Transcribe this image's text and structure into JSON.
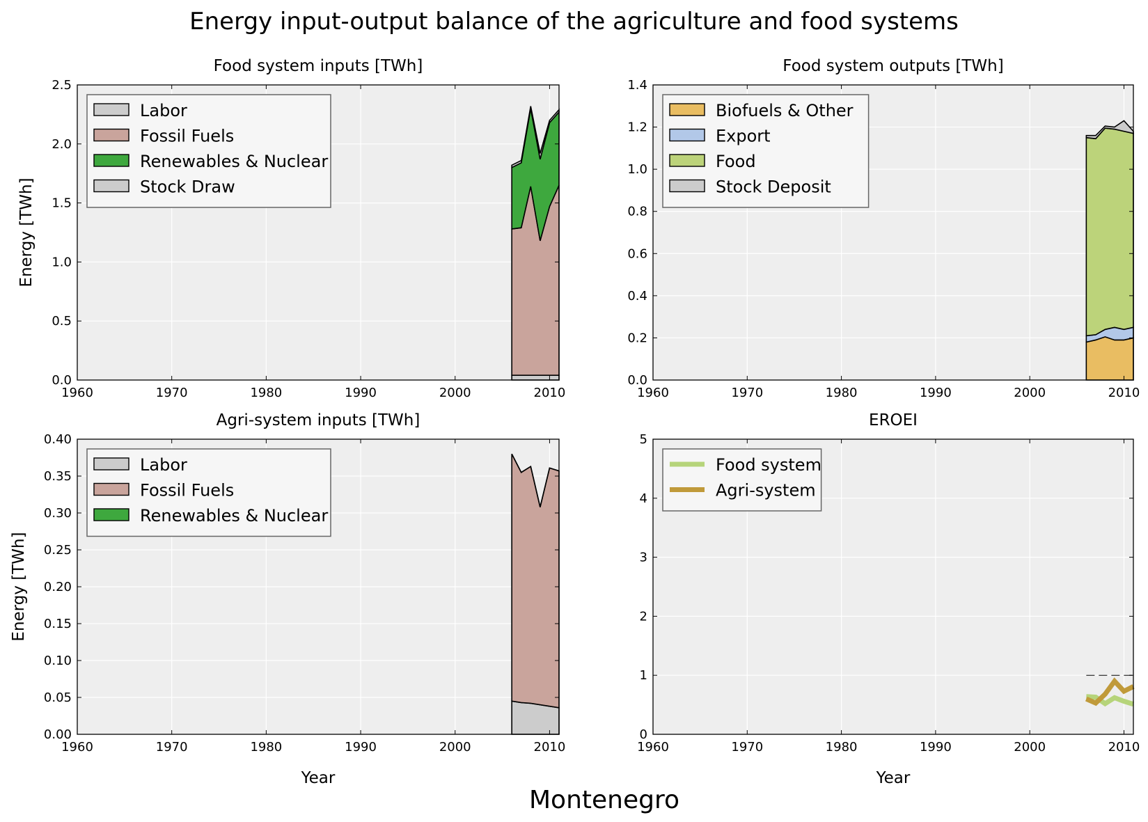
{
  "suptitle": "Energy input-output balance of the agriculture and food systems",
  "footer": "Montenegro",
  "colors": {
    "labor": "#cccccc",
    "fossil": "#c9a49c",
    "renewables": "#3ea83e",
    "stock_draw": "#cccccc",
    "biofuels": "#e9bd62",
    "export": "#b2c8e8",
    "food": "#bcd37a",
    "stock_deposit": "#cccccc",
    "eroei_food": "#b6d47a",
    "eroei_agri": "#c09a3a",
    "axes_bg": "#eeeeee",
    "grid": "#ffffff"
  },
  "chart_data": [
    {
      "id": "food_inputs",
      "type": "area",
      "title": "Food system inputs [TWh]",
      "xlabel": "",
      "ylabel": "Energy [TWh]",
      "xlim": [
        1960,
        2011
      ],
      "ylim": [
        0,
        2.5
      ],
      "xticks": [
        "1960",
        "1970",
        "1980",
        "1990",
        "2000",
        "2010"
      ],
      "yticks": [
        "0.0",
        "0.5",
        "1.0",
        "1.5",
        "2.0",
        "2.5"
      ],
      "legend_position": "upper-left",
      "x": [
        2006,
        2007,
        2008,
        2009,
        2010,
        2011
      ],
      "series": [
        {
          "name": "Labor",
          "color_key": "labor",
          "values": [
            0.04,
            0.04,
            0.04,
            0.04,
            0.04,
            0.04
          ]
        },
        {
          "name": "Fossil Fuels",
          "color_key": "fossil",
          "values": [
            1.24,
            1.25,
            1.6,
            1.14,
            1.43,
            1.61
          ]
        },
        {
          "name": "Renewables & Nuclear",
          "color_key": "renewables",
          "values": [
            0.52,
            0.55,
            0.66,
            0.69,
            0.71,
            0.62
          ]
        },
        {
          "name": "Stock Draw",
          "color_key": "stock_draw",
          "values": [
            0.02,
            0.02,
            0.02,
            0.05,
            0.02,
            0.02
          ]
        }
      ]
    },
    {
      "id": "food_outputs",
      "type": "area",
      "title": "Food system outputs [TWh]",
      "xlabel": "",
      "ylabel": "",
      "xlim": [
        1960,
        2011
      ],
      "ylim": [
        0,
        1.4
      ],
      "xticks": [
        "1960",
        "1970",
        "1980",
        "1990",
        "2000",
        "2010"
      ],
      "yticks": [
        "0.0",
        "0.2",
        "0.4",
        "0.6",
        "0.8",
        "1.0",
        "1.2",
        "1.4"
      ],
      "legend_position": "upper-left",
      "x": [
        2006,
        2007,
        2008,
        2009,
        2010,
        2011
      ],
      "series": [
        {
          "name": "Biofuels & Other",
          "color_key": "biofuels",
          "values": [
            0.18,
            0.19,
            0.205,
            0.19,
            0.19,
            0.2
          ]
        },
        {
          "name": "Export",
          "color_key": "export",
          "values": [
            0.03,
            0.025,
            0.035,
            0.06,
            0.05,
            0.05
          ]
        },
        {
          "name": "Food",
          "color_key": "food",
          "values": [
            0.94,
            0.93,
            0.955,
            0.94,
            0.94,
            0.92
          ]
        },
        {
          "name": "Stock Deposit",
          "color_key": "stock_deposit",
          "values": [
            0.01,
            0.015,
            0.01,
            0.01,
            0.05,
            0.01
          ]
        }
      ]
    },
    {
      "id": "agri_inputs",
      "type": "area",
      "title": "Agri-system inputs [TWh]",
      "xlabel": "Year",
      "ylabel": "Energy [TWh]",
      "xlim": [
        1960,
        2011
      ],
      "ylim": [
        0,
        0.4
      ],
      "xticks": [
        "1960",
        "1970",
        "1980",
        "1990",
        "2000",
        "2010"
      ],
      "yticks": [
        "0.00",
        "0.05",
        "0.10",
        "0.15",
        "0.20",
        "0.25",
        "0.30",
        "0.35",
        "0.40"
      ],
      "legend_position": "upper-left",
      "x": [
        2006,
        2007,
        2008,
        2009,
        2010,
        2011
      ],
      "series": [
        {
          "name": "Labor",
          "color_key": "labor",
          "values": [
            0.045,
            0.043,
            0.042,
            0.04,
            0.038,
            0.036
          ]
        },
        {
          "name": "Fossil Fuels",
          "color_key": "fossil",
          "values": [
            0.335,
            0.312,
            0.321,
            0.268,
            0.323,
            0.321
          ]
        },
        {
          "name": "Renewables & Nuclear",
          "color_key": "renewables",
          "values": [
            0,
            0,
            0,
            0,
            0,
            0
          ]
        }
      ]
    },
    {
      "id": "eroei",
      "type": "line",
      "title": "EROEI",
      "xlabel": "Year",
      "ylabel": "",
      "xlim": [
        1960,
        2011
      ],
      "ylim": [
        0,
        5
      ],
      "xticks": [
        "1960",
        "1970",
        "1980",
        "1990",
        "2000",
        "2010"
      ],
      "yticks": [
        "0",
        "1",
        "2",
        "3",
        "4",
        "5"
      ],
      "legend_position": "upper-left",
      "reference_line": {
        "y": 1,
        "from_x": 2006,
        "to_x": 2011,
        "style": "dashed"
      },
      "x": [
        2006,
        2007,
        2008,
        2009,
        2010,
        2011
      ],
      "series": [
        {
          "name": "Food system",
          "color_key": "eroei_food",
          "values": [
            0.64,
            0.63,
            0.52,
            0.62,
            0.56,
            0.51
          ]
        },
        {
          "name": "Agri-system",
          "color_key": "eroei_agri",
          "values": [
            0.6,
            0.53,
            0.68,
            0.9,
            0.73,
            0.81
          ]
        }
      ]
    }
  ]
}
